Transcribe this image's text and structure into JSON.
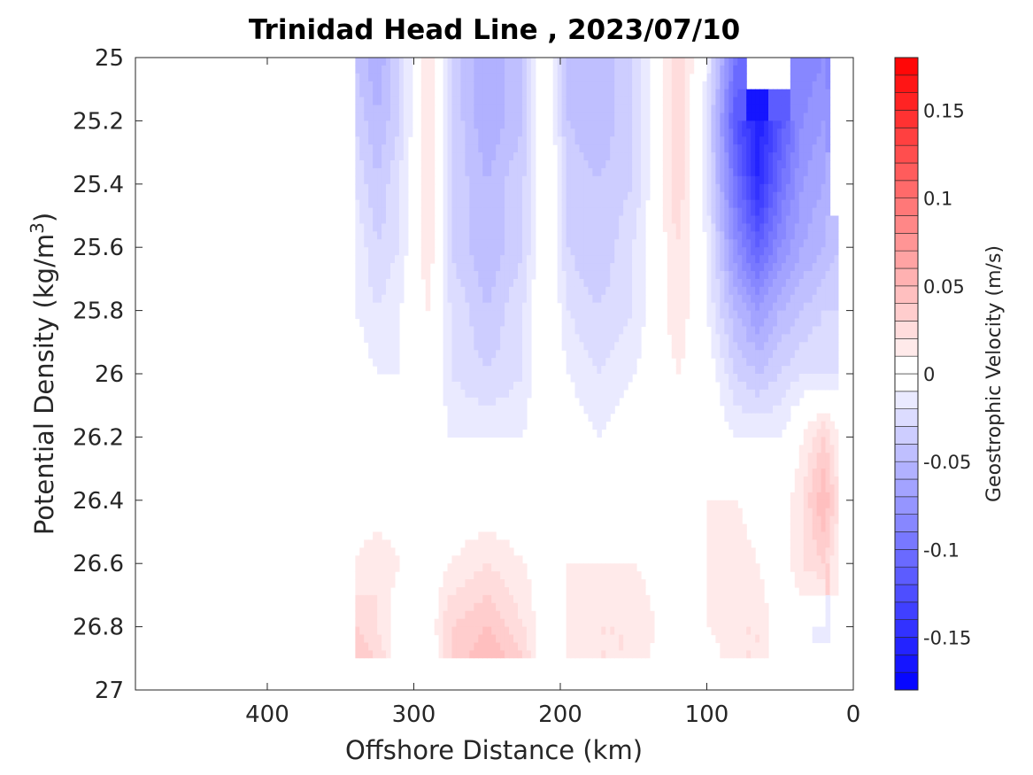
{
  "chart_data": {
    "type": "heatmap",
    "title": "Trinidad Head Line , 2023/07/10",
    "xlabel": "Offshore Distance (km)",
    "ylabel_main": "Potential Density (kg/m",
    "ylabel_sup": "3",
    "ylabel_end": ")",
    "xlim": [
      490,
      0
    ],
    "ylim": [
      27,
      25
    ],
    "x_ticks": [
      400,
      300,
      200,
      100,
      0
    ],
    "x_tick_labels": [
      "400",
      "300",
      "200",
      "100",
      "0"
    ],
    "y_ticks": [
      25,
      25.2,
      25.4,
      25.6,
      25.8,
      26,
      26.2,
      26.4,
      26.6,
      26.8,
      27
    ],
    "y_tick_labels": [
      "25",
      "25.2",
      "25.4",
      "25.6",
      "25.8",
      "26",
      "26.2",
      "26.4",
      "26.6",
      "26.8",
      "27"
    ],
    "colorbar": {
      "label": "Geostrophic Velocity (m/s)",
      "range": [
        -0.18,
        0.18
      ],
      "levels": 36,
      "ticks": [
        0.15,
        0.1,
        0.05,
        0,
        -0.05,
        -0.1,
        -0.15
      ],
      "tick_labels": [
        "0.15",
        "0.1",
        "0.05",
        "0",
        "-0.05",
        "-0.1",
        "-0.15"
      ],
      "negative_color": "#0000ff",
      "positive_color": "#ff0000",
      "zero_color": "#ffffff"
    },
    "data_extent": {
      "x": [
        340,
        10
      ],
      "y": [
        25,
        26.9
      ]
    },
    "x": [
      340,
      325,
      310,
      290,
      275,
      250,
      225,
      210,
      195,
      175,
      150,
      120,
      100,
      80,
      65,
      50,
      35,
      20,
      10
    ],
    "y": [
      25,
      25.2,
      25.4,
      25.6,
      25.8,
      26,
      26.2,
      26.4,
      26.6,
      26.8,
      26.9
    ],
    "values": [
      [
        -0.04,
        -0.06,
        -0.03,
        0.02,
        -0.03,
        -0.06,
        -0.04,
        0.01,
        -0.04,
        -0.05,
        -0.03,
        0.03,
        -0.01,
        -0.1,
        null,
        null,
        -0.09,
        -0.08,
        null
      ],
      [
        -0.03,
        -0.05,
        -0.03,
        0.02,
        -0.03,
        -0.06,
        -0.04,
        0.01,
        -0.04,
        -0.05,
        -0.03,
        0.03,
        -0.02,
        -0.12,
        -0.16,
        -0.12,
        -0.08,
        -0.07,
        null
      ],
      [
        -0.02,
        -0.04,
        -0.02,
        0.02,
        -0.03,
        -0.05,
        -0.03,
        0.01,
        -0.03,
        -0.04,
        -0.03,
        0.03,
        -0.02,
        -0.1,
        -0.15,
        -0.1,
        -0.07,
        -0.06,
        null
      ],
      [
        -0.01,
        -0.03,
        -0.02,
        0.02,
        -0.03,
        -0.05,
        -0.03,
        0.01,
        -0.03,
        -0.04,
        -0.02,
        0.02,
        -0.01,
        -0.08,
        -0.11,
        -0.08,
        -0.06,
        -0.05,
        -0.04
      ],
      [
        -0.01,
        -0.02,
        -0.01,
        0.01,
        -0.02,
        -0.04,
        -0.02,
        0.01,
        -0.02,
        -0.03,
        -0.02,
        0.02,
        -0.01,
        -0.05,
        -0.07,
        -0.05,
        -0.04,
        -0.03,
        -0.03
      ],
      [
        0.0,
        -0.01,
        -0.01,
        0.01,
        -0.02,
        -0.03,
        -0.02,
        0.01,
        -0.01,
        -0.02,
        -0.01,
        0.01,
        0.0,
        -0.03,
        -0.04,
        -0.03,
        -0.02,
        -0.02,
        -0.02
      ],
      [
        0.0,
        0.0,
        0.0,
        0.0,
        -0.01,
        -0.01,
        -0.01,
        0.01,
        0.0,
        -0.01,
        0.0,
        0.0,
        0.0,
        -0.01,
        -0.01,
        -0.01,
        0.01,
        0.03,
        0.01
      ],
      [
        0.0,
        0.0,
        0.0,
        0.0,
        0.0,
        0.0,
        0.0,
        0.01,
        0.01,
        0.0,
        0.0,
        0.0,
        0.01,
        0.01,
        0.0,
        0.0,
        0.02,
        0.05,
        0.02
      ],
      [
        0.01,
        0.02,
        0.01,
        0.0,
        0.01,
        0.02,
        0.01,
        0.0,
        0.01,
        0.01,
        0.01,
        0.0,
        0.01,
        0.02,
        0.01,
        0.0,
        0.02,
        0.03,
        0.01
      ],
      [
        0.03,
        0.02,
        0.0,
        0.0,
        0.03,
        0.04,
        0.02,
        0.0,
        0.01,
        0.02,
        0.02,
        0.0,
        0.01,
        0.02,
        0.02,
        0.0,
        0.0,
        -0.01,
        null
      ],
      [
        0.04,
        0.03,
        0.0,
        -0.01,
        0.03,
        0.05,
        0.03,
        -0.01,
        0.01,
        0.02,
        0.02,
        -0.01,
        0.0,
        0.02,
        0.02,
        0.0,
        null,
        null,
        null
      ]
    ]
  }
}
